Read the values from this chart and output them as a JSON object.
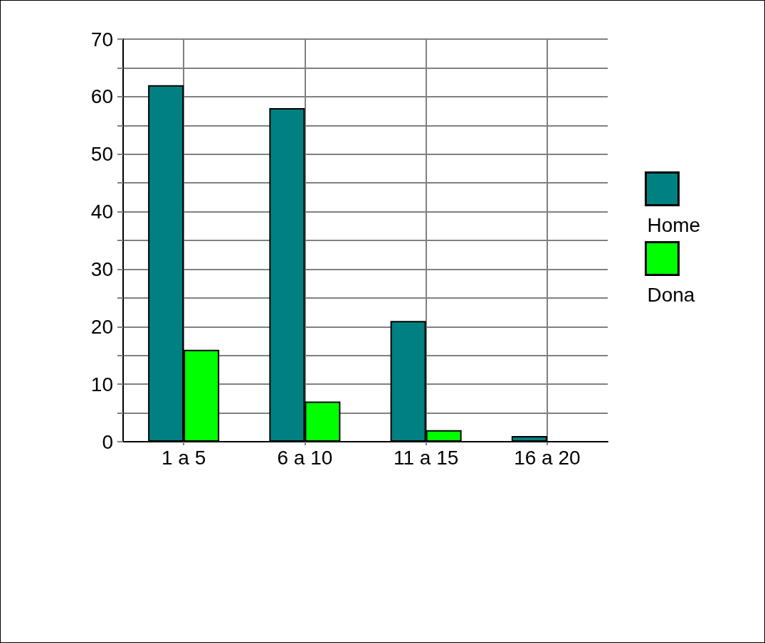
{
  "chart_data": {
    "type": "bar",
    "categories": [
      "1 a 5",
      "6 a 10",
      "11 a 15",
      "16 a 20"
    ],
    "series": [
      {
        "name": "Home",
        "color": "#008080",
        "values": [
          62,
          58,
          21,
          1
        ]
      },
      {
        "name": "Dona",
        "color": "#00ff00",
        "values": [
          16,
          7,
          2,
          0
        ]
      }
    ],
    "ylim": [
      0,
      70
    ],
    "yticks": [
      0,
      {
        "value": 5,
        "label": null
      },
      10,
      {
        "value": 15,
        "label": null
      },
      20,
      {
        "value": 25,
        "label": null
      },
      30,
      {
        "value": 35,
        "label": null
      },
      40,
      {
        "value": 45,
        "label": null
      },
      50,
      {
        "value": 55,
        "label": null
      },
      60,
      {
        "value": 65,
        "label": null
      },
      70
    ],
    "grid": true,
    "legend": "right"
  }
}
